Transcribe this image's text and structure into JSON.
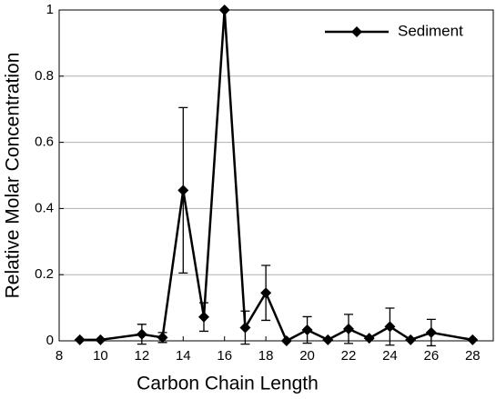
{
  "chart_data": {
    "type": "line",
    "xlabel": "Carbon Chain Length",
    "ylabel": "Relative Molar Concentration",
    "x": [
      9,
      10,
      12,
      13,
      14,
      15,
      16,
      17,
      18,
      19,
      20,
      21,
      22,
      23,
      24,
      25,
      26,
      28
    ],
    "series": [
      {
        "name": "Sediment",
        "color": "#000000",
        "values": [
          0.003,
          0.003,
          0.02,
          0.01,
          0.455,
          0.072,
          1.0,
          0.04,
          0.145,
          0.0,
          0.033,
          0.003,
          0.036,
          0.008,
          0.043,
          0.003,
          0.025,
          0.003
        ],
        "errors": [
          0,
          0,
          0.03,
          0.015,
          0.25,
          0.043,
          0,
          0.05,
          0.083,
          0,
          0.04,
          0,
          0.044,
          0,
          0.056,
          0,
          0.04,
          0
        ]
      }
    ],
    "xlim": [
      8,
      29
    ],
    "xticks": [
      8,
      10,
      12,
      14,
      16,
      18,
      20,
      22,
      24,
      26,
      28
    ],
    "ylim": [
      0,
      1
    ],
    "yticks": [
      0,
      0.2,
      0.4,
      0.6,
      0.8,
      1
    ],
    "grid": true,
    "legend": "upper right"
  }
}
